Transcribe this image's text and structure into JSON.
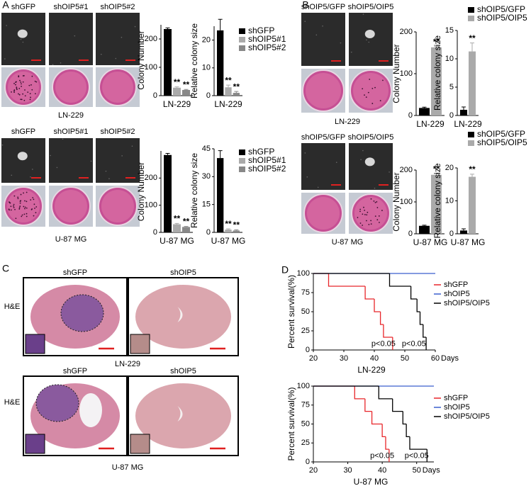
{
  "panel_labels": [
    "A",
    "B",
    "C",
    "D"
  ],
  "panel_A": {
    "rows": [
      {
        "photo_labels": [
          "shGFP",
          "shOIP5#1",
          "shOIP5#2"
        ],
        "cell_line": "LN-229"
      },
      {
        "photo_labels": [
          "shGFP",
          "shOIP5#1",
          "shOIP5#2"
        ],
        "cell_line": "U-87 MG"
      }
    ]
  },
  "panel_B": {
    "rows": [
      {
        "photo_labels": [
          "shOIP5/GFP",
          "shOIP5/OIP5"
        ],
        "cell_line": "LN-229"
      },
      {
        "photo_labels": [
          "shOIP5/GFP",
          "shOIP5/OIP5"
        ],
        "cell_line": "U-87 MG"
      }
    ]
  },
  "panel_C": {
    "rows": [
      {
        "photo_labels": [
          "shGFP",
          "shOIP5"
        ],
        "stain": "H&E",
        "cell_line": "LN-229"
      },
      {
        "photo_labels": [
          "shGFP",
          "shOIP5"
        ],
        "stain": "H&E",
        "cell_line": "U-87 MG"
      }
    ]
  },
  "chart_data": [
    {
      "type": "bar",
      "ylabel": "Colony Number",
      "categories": [
        "LN-229"
      ],
      "ylim": [
        0,
        250
      ],
      "yticks": [
        0,
        100,
        200
      ],
      "series": [
        {
          "color": "#000000",
          "values": [
            235
          ],
          "errors": [
            4
          ]
        },
        {
          "color": "#aaaaaa",
          "values": [
            28
          ],
          "errors": [
            3
          ],
          "sig": [
            "**"
          ]
        },
        {
          "color": "#888888",
          "values": [
            20
          ],
          "errors": [
            2
          ],
          "sig": [
            "**"
          ]
        }
      ]
    },
    {
      "type": "bar",
      "ylabel": "Relative colony size",
      "categories": [
        "LN-229"
      ],
      "ylim": [
        0,
        25
      ],
      "yticks": [
        0,
        10,
        20
      ],
      "legend": "upper right",
      "series": [
        {
          "name": "shGFP",
          "color": "#000000",
          "values": [
            23.5
          ],
          "errors": [
            4
          ]
        },
        {
          "name": "shOIP5#1",
          "color": "#aaaaaa",
          "values": [
            3
          ],
          "errors": [
            0.8
          ],
          "sig": [
            "**"
          ]
        },
        {
          "name": "shOIP5#2",
          "color": "#888888",
          "values": [
            1
          ],
          "errors": [
            0.5
          ],
          "sig": [
            "**"
          ]
        }
      ]
    },
    {
      "type": "bar",
      "ylabel": "Colony Number",
      "categories": [
        "U-87 MG"
      ],
      "ylim": [
        0,
        300
      ],
      "yticks": [
        0,
        100,
        200
      ],
      "series": [
        {
          "color": "#000000",
          "values": [
            285
          ],
          "errors": [
            6
          ]
        },
        {
          "color": "#aaaaaa",
          "values": [
            30
          ],
          "errors": [
            3
          ],
          "sig": [
            "**"
          ]
        },
        {
          "color": "#888888",
          "values": [
            20
          ],
          "errors": [
            2
          ],
          "sig": [
            "**"
          ]
        }
      ]
    },
    {
      "type": "bar",
      "ylabel": "Relative colony size",
      "categories": [
        "U-87 MG"
      ],
      "ylim": [
        0,
        45
      ],
      "yticks": [
        0,
        15,
        30,
        45
      ],
      "legend": "upper right",
      "series": [
        {
          "name": "shGFP",
          "color": "#000000",
          "values": [
            40
          ],
          "errors": [
            4
          ]
        },
        {
          "name": "shOIP5#1",
          "color": "#aaaaaa",
          "values": [
            1.5
          ],
          "errors": [
            0.4
          ],
          "sig": [
            "**"
          ]
        },
        {
          "name": "shOIP5#2",
          "color": "#888888",
          "values": [
            1
          ],
          "errors": [
            0.4
          ],
          "sig": [
            "**"
          ]
        }
      ]
    },
    {
      "type": "bar",
      "ylabel": "Colony Number",
      "categories": [
        "LN-229"
      ],
      "ylim": [
        0,
        200
      ],
      "yticks": [
        0,
        100,
        200
      ],
      "series": [
        {
          "color": "#000000",
          "values": [
            18
          ],
          "errors": [
            2
          ]
        },
        {
          "color": "#aaaaaa",
          "values": [
            163
          ],
          "errors": [
            2
          ],
          "sig": [
            "**"
          ]
        }
      ]
    },
    {
      "type": "bar",
      "ylabel": "Relative colony size",
      "categories": [
        "LN-229"
      ],
      "ylim": [
        0,
        15
      ],
      "yticks": [
        0,
        5,
        10,
        15
      ],
      "legend": "upper right",
      "series": [
        {
          "name": "shOIP5/GFP",
          "color": "#000000",
          "values": [
            1
          ],
          "errors": [
            0.5
          ]
        },
        {
          "name": "shOIP5/OIP5",
          "color": "#aaaaaa",
          "values": [
            11.3
          ],
          "errors": [
            1.5
          ],
          "sig": [
            "**"
          ]
        }
      ]
    },
    {
      "type": "bar",
      "ylabel": "Colony Number",
      "categories": [
        "U-87 MG"
      ],
      "ylim": [
        0,
        200
      ],
      "yticks": [
        0,
        100,
        200
      ],
      "series": [
        {
          "color": "#000000",
          "values": [
            25
          ],
          "errors": [
            2
          ]
        },
        {
          "color": "#aaaaaa",
          "values": [
            185
          ],
          "errors": [
            3
          ],
          "sig": [
            "**"
          ]
        }
      ]
    },
    {
      "type": "bar",
      "ylabel": "Relative colony size",
      "categories": [
        "U-87 MG"
      ],
      "ylim": [
        0,
        20
      ],
      "yticks": [
        0,
        10,
        20
      ],
      "legend": "upper right",
      "series": [
        {
          "name": "shOIP5/GFP",
          "color": "#000000",
          "values": [
            1
          ],
          "errors": [
            0.5
          ]
        },
        {
          "name": "shOIP5/OIP5",
          "color": "#aaaaaa",
          "values": [
            17.3
          ],
          "errors": [
            0.8
          ],
          "sig": [
            "**"
          ]
        }
      ]
    },
    {
      "type": "step",
      "ylabel": "Percent survival(%)",
      "xlabel": "LN-229",
      "x_unit": "Days",
      "xlim": [
        20,
        60
      ],
      "xticks": [
        20,
        30,
        40,
        50,
        60
      ],
      "ylim": [
        0,
        100
      ],
      "yticks": [
        0,
        25,
        50,
        75,
        100
      ],
      "legend": "upper right",
      "series": [
        {
          "name": "shGFP",
          "color": "#e8262a",
          "x": [
            20,
            25,
            37,
            40,
            42,
            43,
            46
          ],
          "values": [
            100,
            83.3,
            66.7,
            50,
            33.3,
            16.7,
            0
          ]
        },
        {
          "name": "shOIP5",
          "color": "#3a5fcd",
          "x": [
            20,
            60
          ],
          "values": [
            100,
            100
          ]
        },
        {
          "name": "shOIP5/OIP5",
          "color": "#000000",
          "x": [
            20,
            45,
            52,
            54,
            55,
            56,
            57
          ],
          "values": [
            100,
            83.3,
            66.7,
            50,
            33.3,
            16.7,
            0
          ]
        }
      ],
      "annotations": [
        "p<0.05",
        "p<0.05"
      ]
    },
    {
      "type": "step",
      "ylabel": "Percent survival(%)",
      "xlabel": "U-87 MG",
      "x_unit": "Days",
      "xlim": [
        20,
        55
      ],
      "xticks": [
        20,
        30,
        40,
        50
      ],
      "ylim": [
        0,
        100
      ],
      "yticks": [
        0,
        25,
        50,
        75,
        100
      ],
      "legend": "upper right",
      "series": [
        {
          "name": "shGFP",
          "color": "#e8262a",
          "x": [
            20,
            32,
            35,
            37,
            40,
            41,
            42
          ],
          "values": [
            100,
            83.3,
            66.7,
            50,
            33.3,
            16.7,
            0
          ]
        },
        {
          "name": "shOIP5",
          "color": "#3a5fcd",
          "x": [
            20,
            55
          ],
          "values": [
            100,
            100
          ]
        },
        {
          "name": "shOIP5/OIP5",
          "color": "#000000",
          "x": [
            20,
            39,
            43,
            46,
            47,
            48,
            53
          ],
          "values": [
            100,
            83.3,
            66.7,
            50,
            33.3,
            16.7,
            0
          ]
        }
      ],
      "annotations": [
        "p<0.05",
        "p<0.05"
      ]
    }
  ]
}
